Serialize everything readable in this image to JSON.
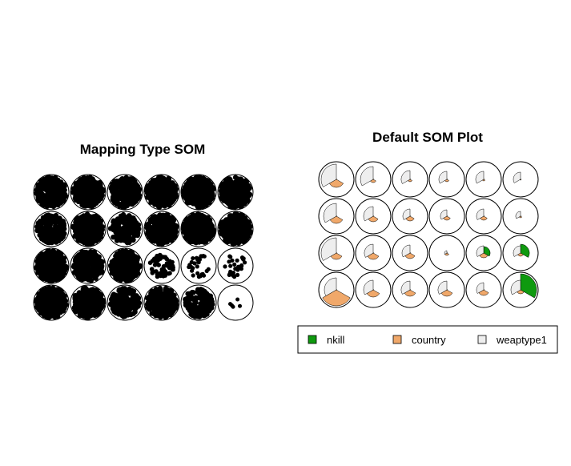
{
  "chart_data": [
    {
      "type": "scatter",
      "title": "Mapping Type SOM",
      "grid": {
        "rows": 4,
        "cols": 6
      },
      "density": [
        [
          5,
          5,
          5,
          5,
          5,
          5
        ],
        [
          4,
          5,
          4,
          5,
          5,
          5
        ],
        [
          5,
          5,
          5,
          3,
          2,
          2
        ],
        [
          5,
          5,
          4,
          5,
          4,
          1
        ]
      ]
    },
    {
      "type": "pie",
      "title": "Default SOM Plot",
      "grid": {
        "rows": 4,
        "cols": 6
      },
      "series": [
        {
          "name": "nkill",
          "color": "#0f9a0f"
        },
        {
          "name": "country",
          "color": "#f0a86a"
        },
        {
          "name": "weaptype1",
          "color": "#eeeeee"
        }
      ],
      "codes": [
        [
          [
            0.02,
            0.5,
            0.95
          ],
          [
            0.02,
            0.2,
            0.8
          ],
          [
            0.02,
            0.15,
            0.55
          ],
          [
            0.02,
            0.15,
            0.5
          ],
          [
            0.02,
            0.1,
            0.5
          ],
          [
            0.02,
            0.05,
            0.45
          ]
        ],
        [
          [
            0.02,
            0.45,
            0.8
          ],
          [
            0.03,
            0.35,
            0.6
          ],
          [
            0.02,
            0.3,
            0.45
          ],
          [
            0.02,
            0.25,
            0.4
          ],
          [
            0.02,
            0.25,
            0.45
          ],
          [
            0.02,
            0.1,
            0.3
          ]
        ],
        [
          [
            0.02,
            0.4,
            0.95
          ],
          [
            0.03,
            0.4,
            0.55
          ],
          [
            0.02,
            0.35,
            0.5
          ],
          [
            0.02,
            0.15,
            0.15
          ],
          [
            0.4,
            0.3,
            0.45
          ],
          [
            0.55,
            0.2,
            0.45
          ]
        ],
        [
          [
            0.02,
            1.0,
            0.75
          ],
          [
            0.03,
            0.45,
            0.6
          ],
          [
            0.02,
            0.4,
            0.55
          ],
          [
            0.02,
            0.4,
            0.55
          ],
          [
            0.02,
            0.35,
            0.45
          ],
          [
            1.0,
            0.25,
            0.6
          ]
        ]
      ]
    }
  ]
}
